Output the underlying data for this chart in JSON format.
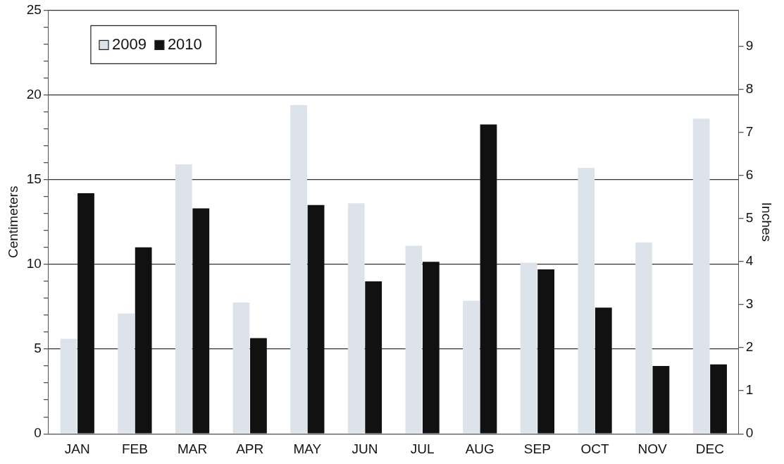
{
  "chart_data": {
    "type": "bar",
    "xlabel": null,
    "ylabel": "Centimeters",
    "y2label": "Inches",
    "categories": [
      "JAN",
      "FEB",
      "MAR",
      "APR",
      "MAY",
      "JUN",
      "JUL",
      "AUG",
      "SEP",
      "OCT",
      "NOV",
      "DEC"
    ],
    "series": [
      {
        "name": "2009",
        "color": "#dde3ea",
        "values": [
          5.6,
          7.1,
          15.9,
          7.75,
          19.4,
          13.6,
          11.1,
          7.85,
          10.1,
          15.7,
          11.3,
          18.6
        ]
      },
      {
        "name": "2010",
        "color": "#111111",
        "values": [
          14.2,
          11.0,
          13.3,
          5.65,
          13.5,
          9.0,
          10.15,
          18.25,
          9.7,
          7.45,
          4.0,
          4.1
        ]
      }
    ],
    "ylim": [
      0,
      25
    ],
    "yticks": [
      0,
      {
        "value": 1,
        "label": null
      },
      {
        "value": 2,
        "label": null
      },
      {
        "value": 3,
        "label": null
      },
      {
        "value": 4,
        "label": null
      },
      5,
      {
        "value": 6,
        "label": null
      },
      {
        "value": 7,
        "label": null
      },
      {
        "value": 8,
        "label": null
      },
      {
        "value": 9,
        "label": null
      },
      10,
      {
        "value": 11,
        "label": null
      },
      {
        "value": 12,
        "label": null
      },
      {
        "value": 13,
        "label": null
      },
      {
        "value": 14,
        "label": null
      },
      15,
      {
        "value": 16,
        "label": null
      },
      {
        "value": 17,
        "label": null
      },
      {
        "value": 18,
        "label": null
      },
      {
        "value": 19,
        "label": null
      },
      20,
      {
        "value": 21,
        "label": null
      },
      {
        "value": 22,
        "label": null
      },
      {
        "value": 23,
        "label": null
      },
      {
        "value": 24,
        "label": null
      },
      25
    ],
    "y2lim": [
      0,
      9.84
    ],
    "y2ticks": [
      0,
      1,
      2,
      3,
      4,
      5,
      6,
      7,
      8,
      9
    ],
    "grid": "y",
    "legend": "top left"
  }
}
